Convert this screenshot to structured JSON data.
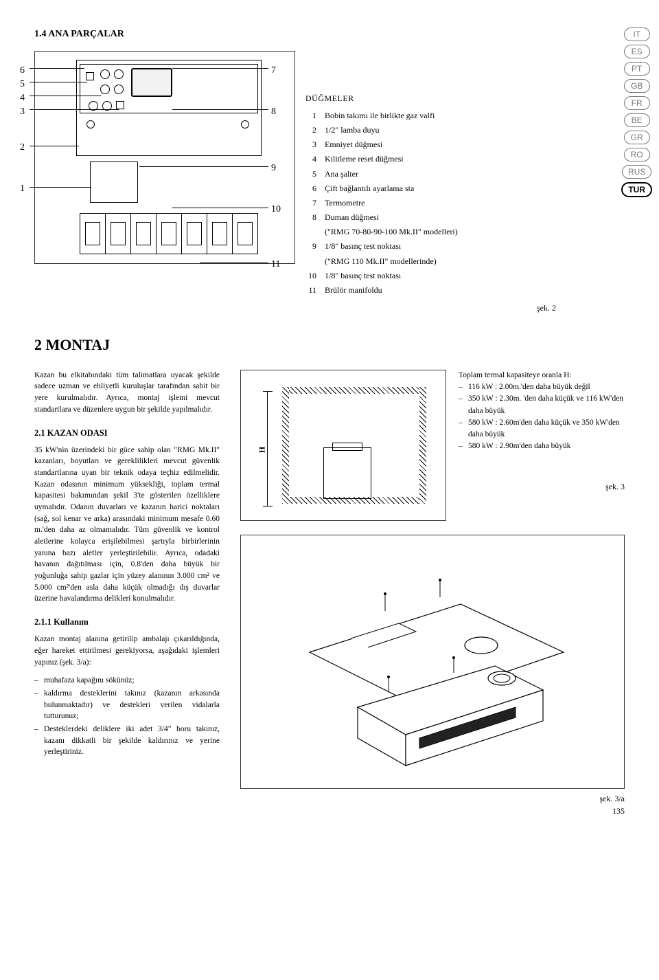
{
  "section_1_4": "1.4  ANA PARÇALAR",
  "legend": {
    "title": "DÜĞMELER",
    "items": [
      {
        "n": "1",
        "t": "Bobin takımı ile birlikte gaz valfi"
      },
      {
        "n": "2",
        "t": "1/2\" lamba duyu"
      },
      {
        "n": "3",
        "t": "Emniyet düğmesi"
      },
      {
        "n": "4",
        "t": "Kilitleme reset düğmesi"
      },
      {
        "n": "5",
        "t": "Ana şalter"
      },
      {
        "n": "6",
        "t": "Çift bağlantılı ayarlama sta"
      },
      {
        "n": "7",
        "t": "Termometre"
      },
      {
        "n": "8",
        "t": "Duman düğmesi"
      },
      {
        "n": "",
        "t": "(\"RMG 70-80-90-100 Mk.II\" modelleri)"
      },
      {
        "n": "9",
        "t": "1/8\" basınç test noktası"
      },
      {
        "n": "",
        "t": "(\"RMG 110 Mk.II\" modellerinde)"
      },
      {
        "n": "10",
        "t": "1/8\" basınç test noktası"
      },
      {
        "n": "11",
        "t": "Brülör manifoldu"
      }
    ]
  },
  "callouts": [
    "6",
    "5",
    "4",
    "3",
    "2",
    "1",
    "7",
    "8",
    "9",
    "10",
    "11"
  ],
  "langs": [
    "IT",
    "ES",
    "PT",
    "GB",
    "FR",
    "BE",
    "GR",
    "RO",
    "RUS",
    "TUR"
  ],
  "active_lang": "TUR",
  "fig2_label": "şek. 2",
  "heading2": "2    MONTAJ",
  "montaj_intro": "Kazan bu elkitabındaki tüm talimatlara uyacak şekilde sadece uzman ve ehliyetli kuruluşlar tarafından sabit bir yere kurulmalıdır. Ayrıca, montaj işlemi mevcut standartlara ve düzenlere uygun bir şekilde yapılmalıdır.",
  "sub_2_1": "2.1    KAZAN ODASI",
  "kazan_odasi": "35 kW'nin üzerindeki bir güce sahip olan \"RMG Mk.II\" kazanları, boyutları ve gereklilikleri mevcut güvenlik standartlarına uyan bir teknik odaya teçhiz edilmelidir. Kazan odasının minimum yüksekliği, toplam termal kapasitesi bakımından şekil 3'te gösterilen özelliklere uymalıdır. Odanın duvarları ve kazanın harici noktaları (sağ, sol kenar ve arka) arasındaki minimum mesafe 0.60 m.'den daha az olmamalıdır. Tüm güvenlik ve kontrol aletlerine kolayca erişilebilmesi şartıyla birbirlerinin yanına bazı aletler yerleştirilebilir. Ayrıca, odadaki havanın dağıtılması için, 0.8'den daha büyük bir yoğunluğa sahip gazlar için yüzey alanının 3.000 cm² ve 5.000 cm²'den asla daha küçük olmadığı dış duvarlar üzerine havalandırma delikleri konulmalıdır.",
  "sub_2_1_1": "2.1.1  Kullanım",
  "kullanim_intro": "Kazan montaj alanına getirilip ambalajı çıkarıldığında, eğer hareket ettirilmesi gerekiyorsa, aşağıdaki işlemleri yapınız (şek. 3/a):",
  "kullanim_items": [
    "muhafaza kapağını sökünüz;",
    "kaldırma desteklerini takınız (kazanın arkasında bulunmaktadır) ve destekleri verilen vidalarla tutturunuz;",
    "Desteklerdeki deliklere iki adet 3/4\" boru takınız, kazanı dikkatli bir şekilde kaldırınız ve yerine yerleştiriniz."
  ],
  "capacity_title": "Toplam termal kapasiteye oranla H:",
  "capacity_items": [
    "116 kW : 2.00m.'den daha büyük değil",
    "350 kW : 2.30m. 'den daha küçük ve 116 kW'den daha büyük",
    "580 kW : 2.60m'den daha küçük ve 350 kW'den daha büyük",
    "580 kW : 2.90m'den daha büyük"
  ],
  "fig3_label": "şek. 3",
  "fig3a_label": "şek. 3/a",
  "dim_label": "H",
  "page_number": "135"
}
